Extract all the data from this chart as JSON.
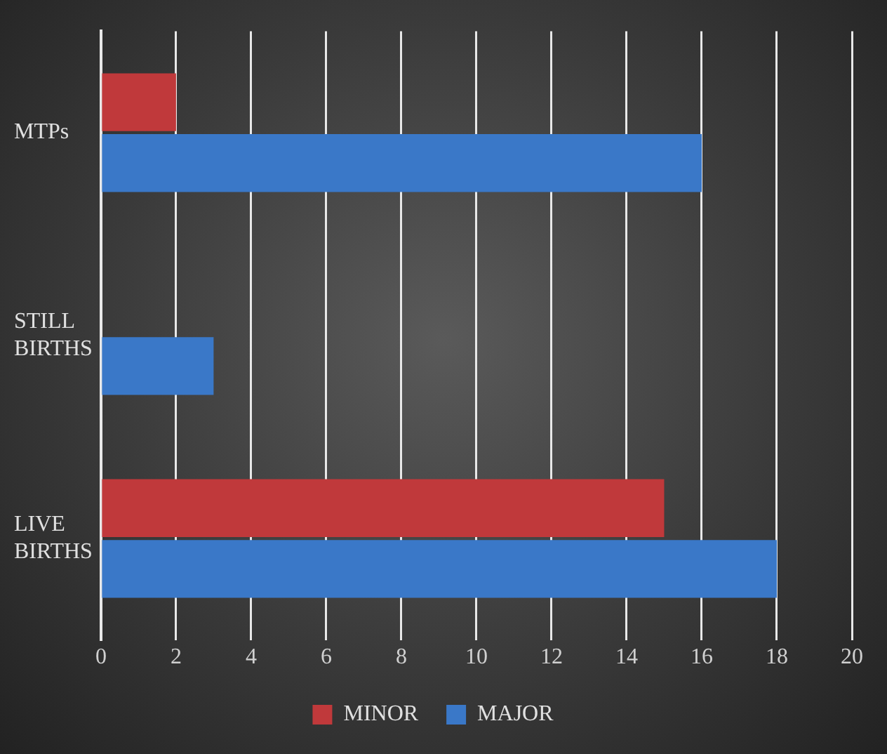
{
  "chart_data": {
    "type": "bar",
    "orientation": "horizontal",
    "categories": [
      "MTPs",
      "STILL BIRTHS",
      "LIVE BIRTHS"
    ],
    "series": [
      {
        "name": "MINOR",
        "color": "#c0393b",
        "values": [
          2,
          0,
          15
        ]
      },
      {
        "name": "MAJOR",
        "color": "#3a78c8",
        "values": [
          16,
          3,
          18
        ]
      }
    ],
    "xlim": [
      0,
      20
    ],
    "xticks": [
      0,
      2,
      4,
      6,
      8,
      10,
      12,
      14,
      16,
      18,
      20
    ],
    "grid": "x",
    "legend": "bottom"
  }
}
